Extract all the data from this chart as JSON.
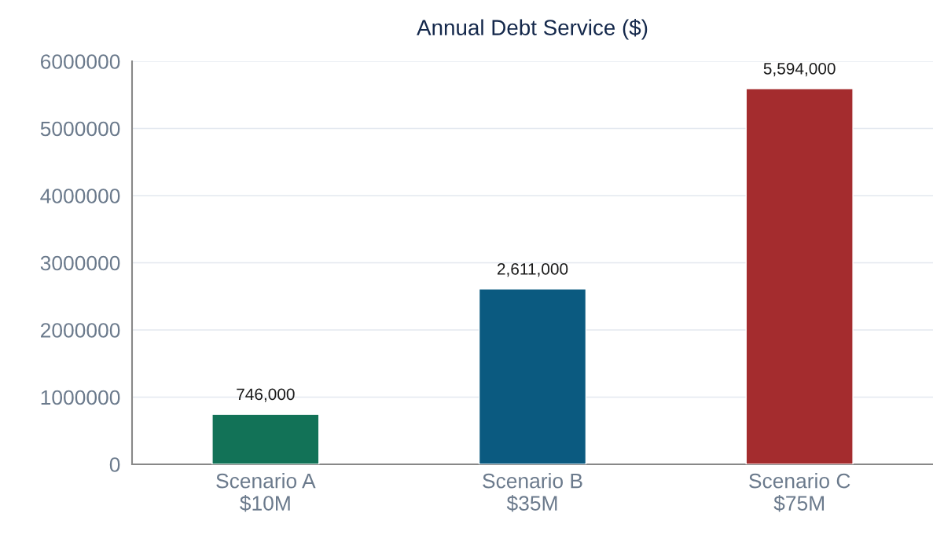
{
  "chart_data": {
    "type": "bar",
    "title": "Annual Debt Service ($)",
    "categories": [
      "Scenario A\n$10M",
      "Scenario B\n$35M",
      "Scenario C\n$75M"
    ],
    "values": [
      746000,
      2611000,
      5594000
    ],
    "colors": [
      "#127257",
      "#0b5a80",
      "#a42c2e"
    ],
    "value_labels": [
      "746,000",
      "2,611,000",
      "5,594,000"
    ],
    "ylim": [
      0,
      6000000
    ],
    "yticks": [
      0,
      1000000,
      2000000,
      3000000,
      4000000,
      5000000,
      6000000
    ],
    "grid": "y"
  }
}
